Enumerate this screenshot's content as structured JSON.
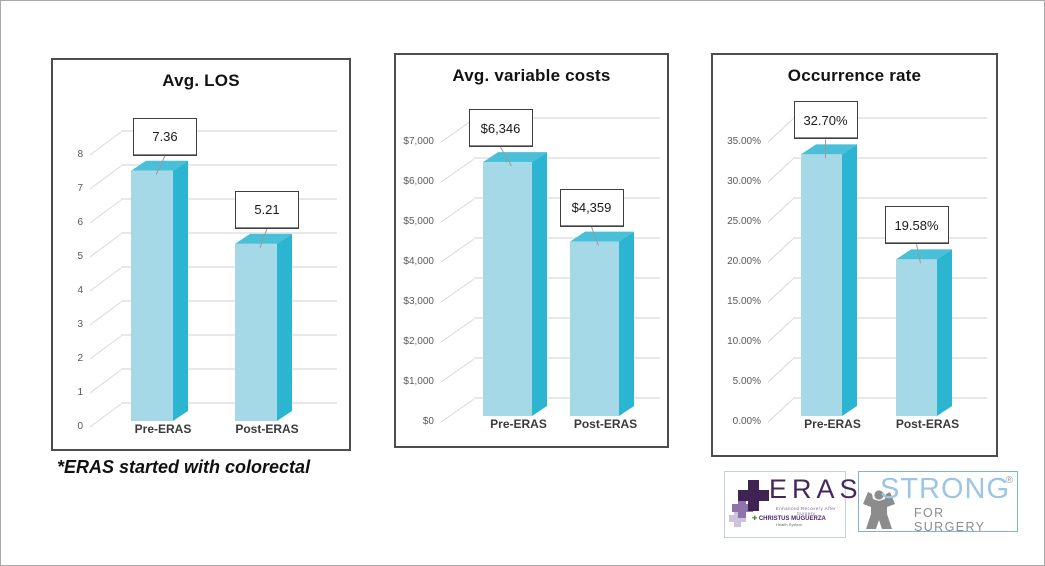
{
  "page": {
    "note": "*ERAS started with colorectal"
  },
  "chart_data": [
    {
      "type": "bar",
      "style": "3d-column",
      "title": "Avg. LOS",
      "categories": [
        "Pre-ERAS",
        "Post-ERAS"
      ],
      "values": [
        7.36,
        5.21
      ],
      "data_labels": [
        "7.36",
        "5.21"
      ],
      "ylim": [
        0,
        8
      ],
      "ytick_step": 1,
      "yticks": [
        "0",
        "1",
        "2",
        "3",
        "4",
        "5",
        "6",
        "7",
        "8"
      ],
      "grid": true,
      "legend": "none"
    },
    {
      "type": "bar",
      "style": "3d-column",
      "title": "Avg. variable costs",
      "categories": [
        "Pre-ERAS",
        "Post-ERAS"
      ],
      "values": [
        6346,
        4359
      ],
      "data_labels": [
        "$6,346",
        "$4,359"
      ],
      "ylim": [
        0,
        7000
      ],
      "ytick_step": 1000,
      "yticks": [
        "$0",
        "$1,000",
        "$2,000",
        "$3,000",
        "$4,000",
        "$5,000",
        "$6,000",
        "$7,000"
      ],
      "grid": true,
      "legend": "none"
    },
    {
      "type": "bar",
      "style": "3d-column",
      "title": "Occurrence rate",
      "categories": [
        "Pre-ERAS",
        "Post-ERAS"
      ],
      "values": [
        32.7,
        19.58
      ],
      "data_labels": [
        "32.70%",
        "19.58%"
      ],
      "ylim": [
        0,
        35
      ],
      "ytick_step": 5,
      "yticks": [
        "0.00%",
        "5.00%",
        "10.00%",
        "15.00%",
        "20.00%",
        "25.00%",
        "30.00%",
        "35.00%"
      ],
      "grid": true,
      "legend": "none"
    }
  ],
  "logos": {
    "eras": {
      "wordmark": "ERAS",
      "tagline": "Enhanced Recovery After Surgery",
      "org_cross": "✚",
      "org_line1": "CHRISTUS MUGUERZA",
      "org_line2": "Health System"
    },
    "strong": {
      "line1": "STRONG",
      "line2": "FOR SURGERY",
      "registered": "®"
    }
  },
  "colors": {
    "bar_front": "#A6D9E7",
    "bar_side": "#2BB5D1",
    "bar_top": "#4AC0D8",
    "gridline": "#D9D9D9",
    "leader_line": "#9A9A9A",
    "panel_border": "#4D4D4D",
    "axis_text": "#595959",
    "category_text": "#3A3A3A",
    "eras_purple": "#46265C",
    "strong_blue": "#9CC6E4",
    "strong_gray": "#8C8C8C"
  }
}
